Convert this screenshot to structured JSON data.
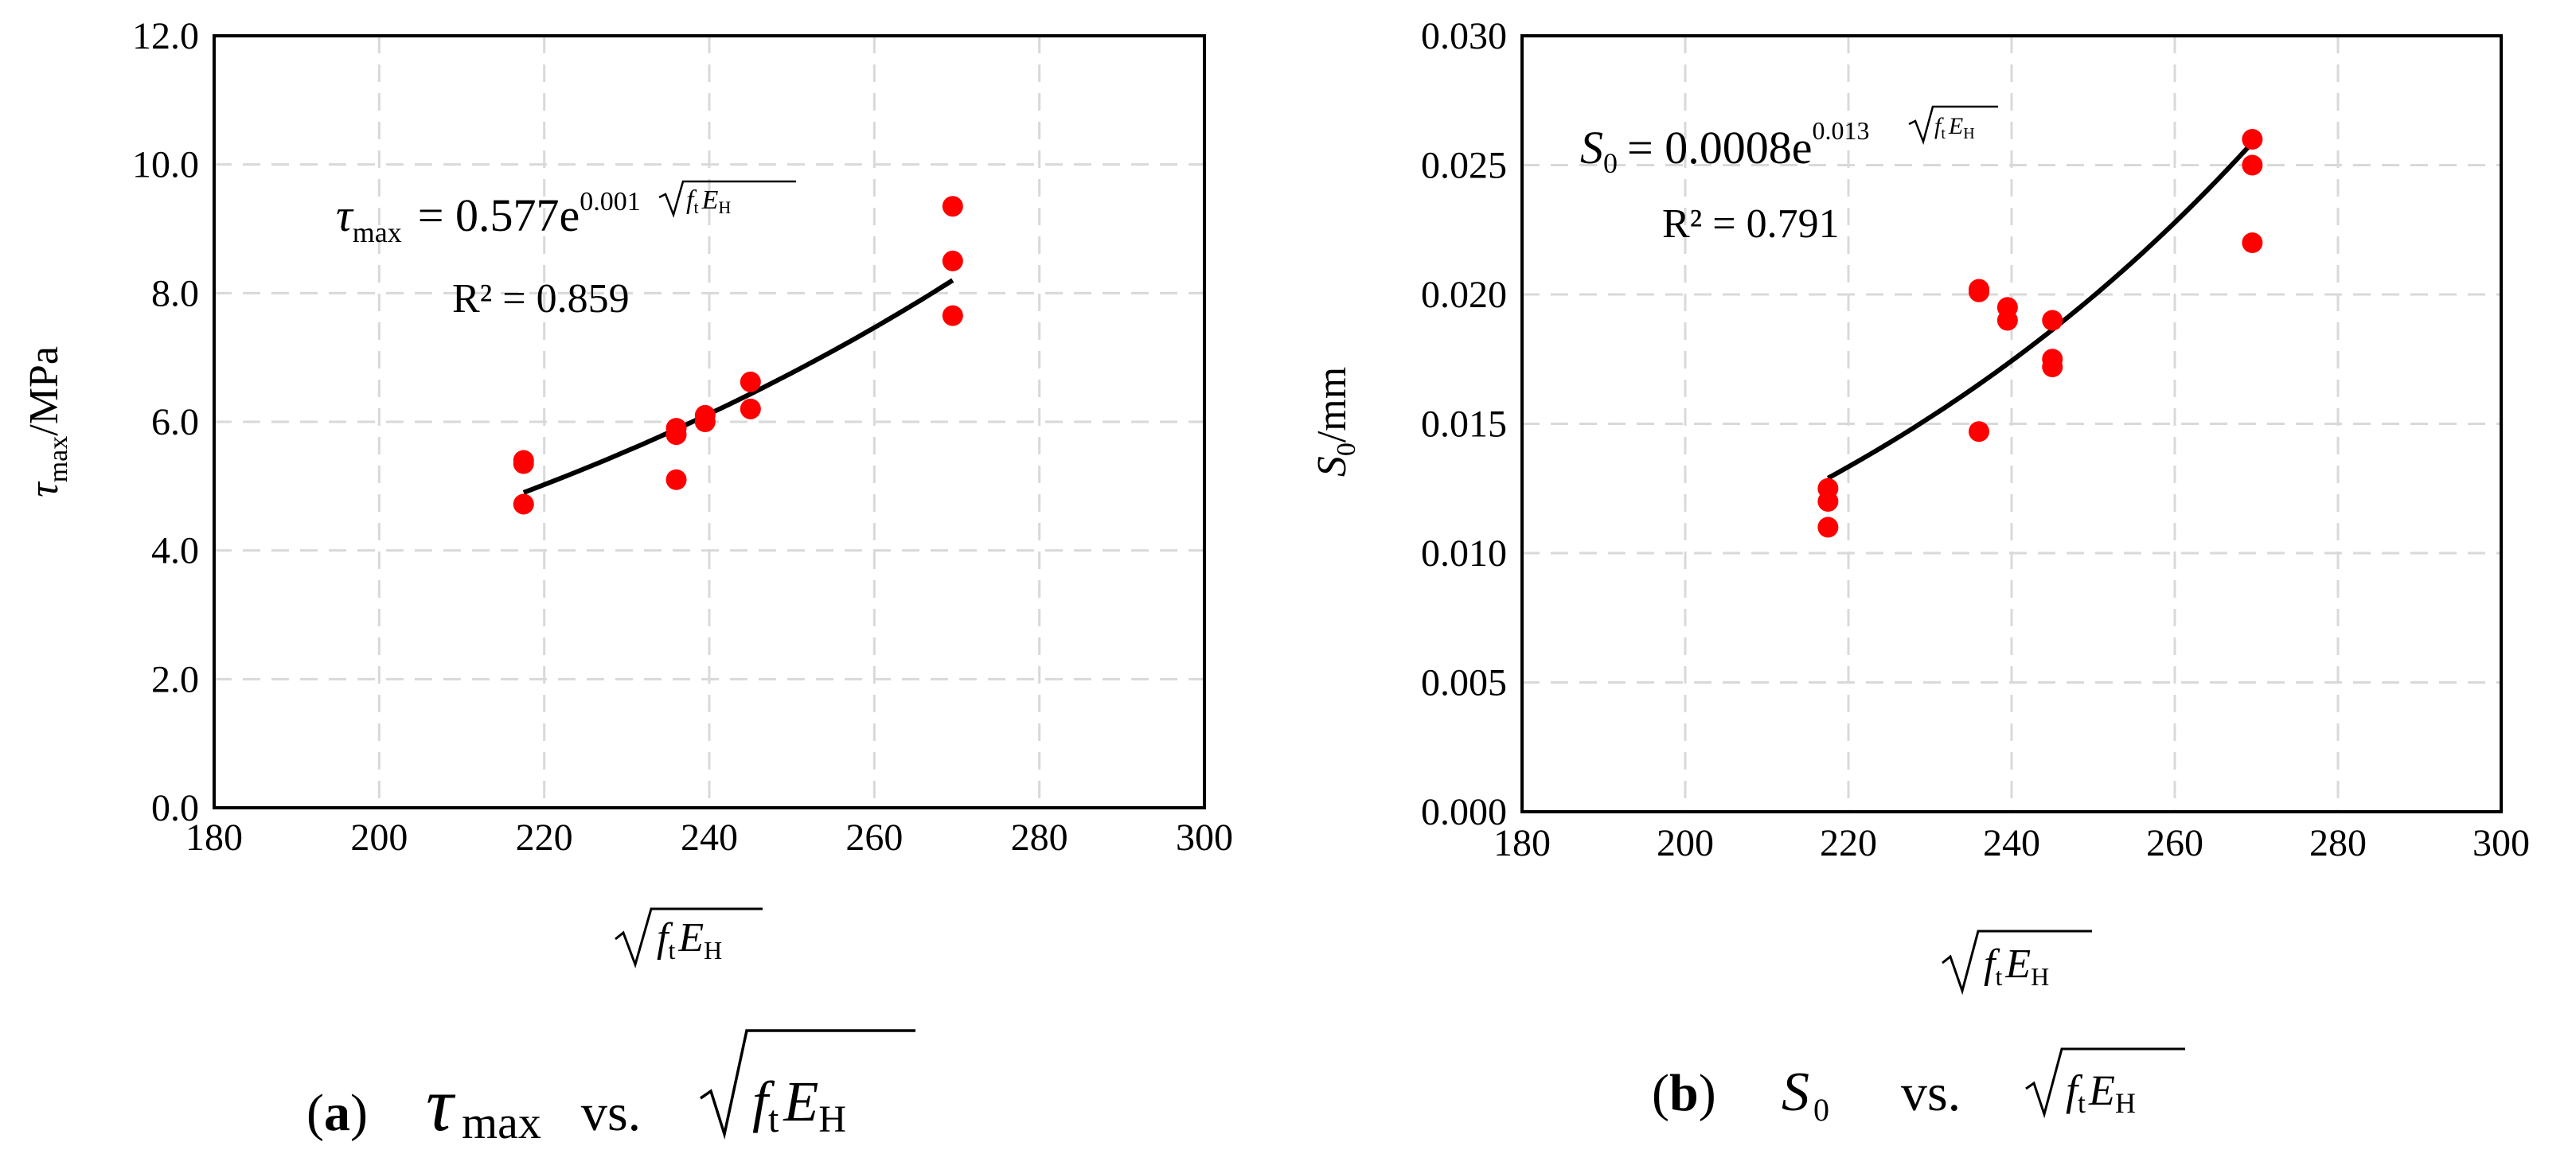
{
  "chart_data": [
    {
      "type": "scatter",
      "panel": "a",
      "caption": {
        "letter": "a",
        "symbol": "τ",
        "subscript": "max",
        "vs": "vs.",
        "rad_f": "f",
        "rad_fsub": "t",
        "rad_E": "E",
        "rad_Esub": "H"
      },
      "xlabel": {
        "f": "f",
        "fsub": "t",
        "E": "E",
        "Esub": "H"
      },
      "ylabel": {
        "symbol": "τ",
        "subscript": "max",
        "unit": "/MPa"
      },
      "xlim": [
        180,
        300
      ],
      "ylim": [
        0,
        12
      ],
      "xticks": [
        "180",
        "200",
        "220",
        "240",
        "260",
        "280",
        "300"
      ],
      "yticks": [
        "0.0",
        "2.0",
        "4.0",
        "6.0",
        "8.0",
        "10.0",
        "12.0"
      ],
      "grid": true,
      "points": [
        [
          217.5,
          5.4
        ],
        [
          217.5,
          5.35
        ],
        [
          217.5,
          4.72
        ],
        [
          236,
          5.9
        ],
        [
          236,
          5.8
        ],
        [
          236,
          5.1
        ],
        [
          239.5,
          6.1
        ],
        [
          239.5,
          6.0
        ],
        [
          245,
          6.62
        ],
        [
          245,
          6.2
        ],
        [
          269.5,
          9.35
        ],
        [
          269.5,
          8.5
        ],
        [
          269.5,
          7.65
        ]
      ],
      "trendline": {
        "type": "exponential",
        "a": 0.577,
        "b": 0.001,
        "x_range": [
          217.5,
          269.5
        ],
        "y_end": [
          4.9,
          8.2
        ]
      },
      "equation": {
        "lhs": "τ",
        "lhs_sub": "max",
        "rhs": "= 0.577e",
        "exp": "0.001",
        "f": "f",
        "fsub": "t",
        "E": "E",
        "Esub": "H"
      },
      "r2": "R² = 0.859",
      "marker_color": "#ff0000",
      "line_color": "#000000",
      "grid_color": "#d9d9d9"
    },
    {
      "type": "scatter",
      "panel": "b",
      "caption": {
        "letter": "b",
        "symbol": "S",
        "subscript": "0",
        "vs": "vs.",
        "rad_f": "f",
        "rad_fsub": "t",
        "rad_E": "E",
        "rad_Esub": "H"
      },
      "xlabel": {
        "f": "f",
        "fsub": "t",
        "E": "E",
        "Esub": "H"
      },
      "ylabel": {
        "symbol": "S",
        "subscript": "0",
        "unit": "/mm"
      },
      "xlim": [
        180,
        300
      ],
      "ylim": [
        0,
        0.03
      ],
      "xticks": [
        "180",
        "200",
        "220",
        "240",
        "260",
        "280",
        "300"
      ],
      "yticks": [
        "0.000",
        "0.005",
        "0.010",
        "0.015",
        "0.020",
        "0.025",
        "0.030"
      ],
      "grid": true,
      "points": [
        [
          217.5,
          0.0125
        ],
        [
          217.5,
          0.012
        ],
        [
          217.5,
          0.011
        ],
        [
          236,
          0.0202
        ],
        [
          236,
          0.0201
        ],
        [
          236,
          0.0147
        ],
        [
          239.5,
          0.0195
        ],
        [
          239.5,
          0.019
        ],
        [
          245,
          0.019
        ],
        [
          245,
          0.0175
        ],
        [
          245,
          0.0172
        ],
        [
          269.5,
          0.026
        ],
        [
          269.5,
          0.025
        ],
        [
          269.5,
          0.022
        ]
      ],
      "trendline": {
        "type": "exponential",
        "a": 0.0008,
        "b": 0.013,
        "x_range": [
          217.5,
          269
        ],
        "y_end": [
          0.0129,
          0.0257
        ]
      },
      "equation": {
        "lhs": "S",
        "lhs_sub": "0",
        "rhs": "= 0.0008e",
        "exp": "0.013",
        "f": "f",
        "fsub": "t",
        "E": "E",
        "Esub": "H"
      },
      "r2": "R² = 0.791",
      "marker_color": "#ff0000",
      "line_color": "#000000",
      "grid_color": "#d9d9d9"
    }
  ]
}
